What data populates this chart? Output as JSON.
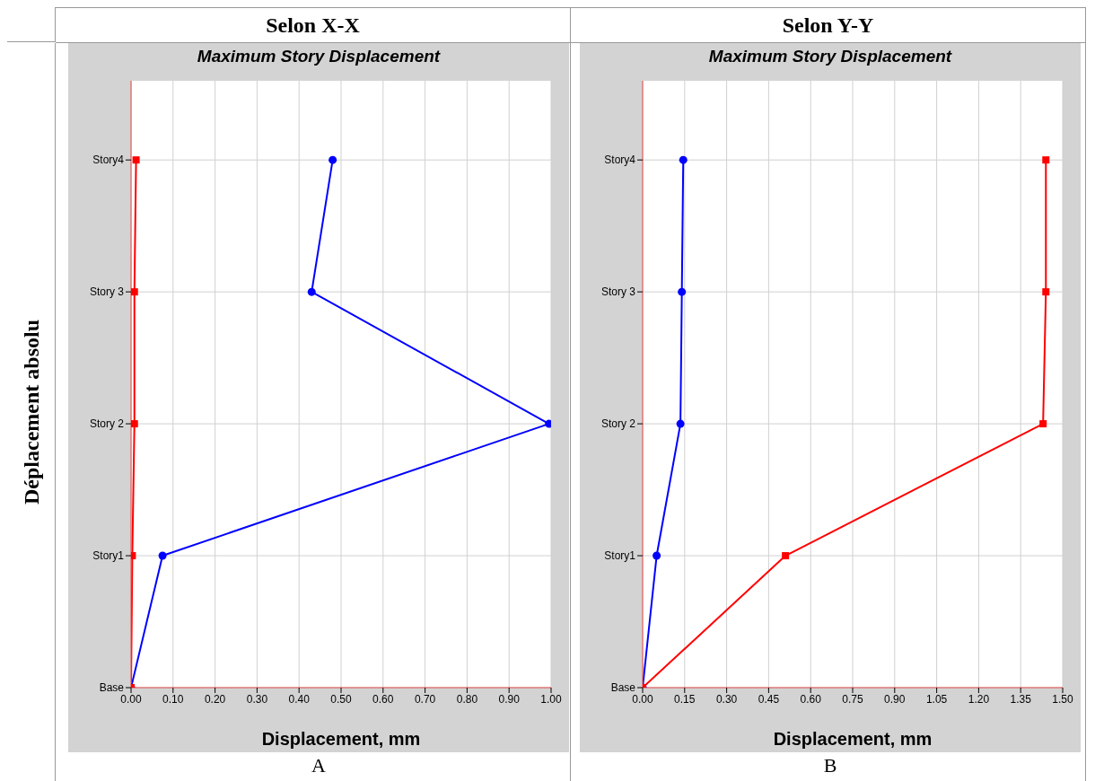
{
  "chart_data": [
    {
      "type": "line",
      "orientation": "horizontal",
      "title": "Maximum Story Displacement",
      "xlabel": "Displacement, mm",
      "ylabel": "Déplacement absolu",
      "annotations": [
        "Selon X-X",
        "A"
      ],
      "categories": [
        "Story4",
        "Story 3",
        "Story 2",
        "Story1",
        "Base"
      ],
      "xlim": [
        0,
        1
      ],
      "xticks": [
        {
          "value": 0,
          "label": "0.00"
        },
        {
          "value": 0.1,
          "label": "0.10"
        },
        {
          "value": 0.2,
          "label": "0.20"
        },
        {
          "value": 0.3,
          "label": "0.30"
        },
        {
          "value": 0.4,
          "label": "0.40"
        },
        {
          "value": 0.5,
          "label": "0.50"
        },
        {
          "value": 0.6,
          "label": "0.60"
        },
        {
          "value": 0.7,
          "label": "0.70"
        },
        {
          "value": 0.8,
          "label": "0.80"
        },
        {
          "value": 0.9,
          "label": "0.90"
        },
        {
          "value": 1,
          "label": "1.00"
        }
      ],
      "grid": true,
      "line_style": "solid",
      "series": [
        {
          "color": "#0000ff",
          "marker": "circle",
          "values": [
            0.48,
            0.43,
            0.995,
            0.075,
            0
          ]
        },
        {
          "color": "#ff0000",
          "marker": "square",
          "values": [
            0.012,
            0.008,
            0.008,
            0.003,
            0
          ]
        }
      ]
    },
    {
      "type": "line",
      "orientation": "horizontal",
      "title": "Maximum Story Displacement",
      "xlabel": "Displacement, mm",
      "annotations": [
        "Selon Y-Y",
        "B"
      ],
      "categories": [
        "Story4",
        "Story 3",
        "Story 2",
        "Story1",
        "Base"
      ],
      "xlim": [
        0,
        1.5
      ],
      "xticks": [
        {
          "value": 0,
          "label": "0.00"
        },
        {
          "value": 0.15,
          "label": "0.15"
        },
        {
          "value": 0.3,
          "label": "0.30"
        },
        {
          "value": 0.45,
          "label": "0.45"
        },
        {
          "value": 0.6,
          "label": "0.60"
        },
        {
          "value": 0.75,
          "label": "0.75"
        },
        {
          "value": 0.9,
          "label": "0.90"
        },
        {
          "value": 1.05,
          "label": "1.05"
        },
        {
          "value": 1.2,
          "label": "1.20"
        },
        {
          "value": 1.35,
          "label": "1.35"
        },
        {
          "value": 1.5,
          "label": "1.50"
        }
      ],
      "grid": true,
      "line_style": "solid",
      "series": [
        {
          "color": "#0000ff",
          "marker": "circle",
          "values": [
            0.145,
            0.14,
            0.135,
            0.05,
            0
          ]
        },
        {
          "color": "#ff0000",
          "marker": "square",
          "values": [
            1.44,
            1.44,
            1.43,
            0.51,
            0
          ]
        }
      ]
    }
  ]
}
